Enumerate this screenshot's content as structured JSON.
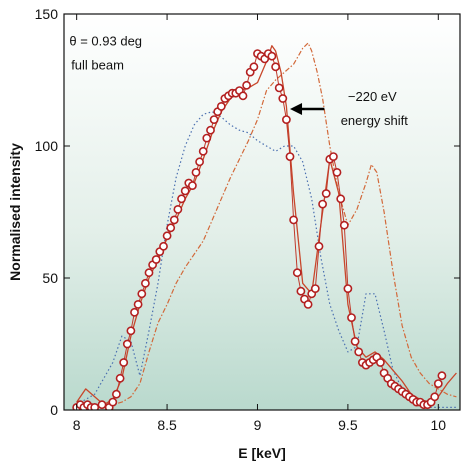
{
  "chart_data": {
    "type": "line",
    "xlabel": "E [keV]",
    "ylabel": "Normalised intensity",
    "xlim": [
      7.93,
      10.12
    ],
    "ylim": [
      0,
      150
    ],
    "x_ticks": [
      8,
      8.5,
      9,
      9.5,
      10
    ],
    "x_tick_labels": [
      "8",
      "8.5",
      "9",
      "9.5",
      "10"
    ],
    "y_ticks": [
      0,
      50,
      100,
      150
    ],
    "y_tick_labels": [
      "0",
      "50",
      "100",
      "150"
    ],
    "background": "white-to-green gradient (white at top, pale green at bottom)",
    "annotations": [
      {
        "text": "θ = 0.93 deg",
        "x": 7.96,
        "y": 138
      },
      {
        "text": "full beam",
        "x": 7.97,
        "y": 129
      },
      {
        "text": "−220 eV",
        "x": 9.5,
        "y": 117
      },
      {
        "text": "energy shift",
        "x": 9.46,
        "y": 108
      }
    ],
    "arrow": {
      "from": [
        9.37,
        114
      ],
      "to": [
        9.18,
        114
      ]
    },
    "colors": {
      "measured": "#c0392b",
      "marker_edge": "#b32020",
      "model_shifted": "#c8472b",
      "model_unshifted": "#d2693a",
      "blue_dotted": "#4a6fb0",
      "arrow": "#000000"
    },
    "series": [
      {
        "style": "markers",
        "x": [
          8.0,
          8.02,
          8.04,
          8.06,
          8.08,
          8.1,
          8.14,
          8.18,
          8.2,
          8.22,
          8.24,
          8.26,
          8.28,
          8.3,
          8.32,
          8.34,
          8.36,
          8.38,
          8.4,
          8.42,
          8.44,
          8.46,
          8.48,
          8.5,
          8.52,
          8.54,
          8.56,
          8.58,
          8.6,
          8.62,
          8.64,
          8.66,
          8.68,
          8.7,
          8.72,
          8.74,
          8.76,
          8.78,
          8.8,
          8.82,
          8.84,
          8.86,
          8.88,
          8.9,
          8.92,
          8.94,
          8.96,
          8.98,
          9.0,
          9.02,
          9.04,
          9.06,
          9.08,
          9.1,
          9.12,
          9.14,
          9.16,
          9.18,
          9.2,
          9.22,
          9.24,
          9.26,
          9.28,
          9.3,
          9.32,
          9.34,
          9.36,
          9.38,
          9.4,
          9.42,
          9.44,
          9.46,
          9.48,
          9.5,
          9.52,
          9.54,
          9.56,
          9.58,
          9.6,
          9.62,
          9.64,
          9.66,
          9.68,
          9.7,
          9.72,
          9.74,
          9.76,
          9.78,
          9.8,
          9.82,
          9.84,
          9.86,
          9.88,
          9.9,
          9.92,
          9.94,
          9.96,
          9.98,
          10.0,
          10.02
        ],
        "values": [
          1,
          2,
          1,
          2,
          1,
          1,
          2,
          1,
          3,
          6,
          12,
          18,
          25,
          30,
          37,
          40,
          44,
          48,
          52,
          55,
          57,
          60,
          62,
          66,
          69,
          72,
          76,
          80,
          83,
          86,
          85,
          90,
          94,
          98,
          103,
          106,
          110,
          113,
          115,
          118,
          119,
          120,
          120,
          121,
          119,
          123,
          128,
          130,
          135,
          134,
          133,
          135,
          134,
          130,
          122,
          118,
          110,
          96,
          72,
          52,
          45,
          42,
          40,
          44,
          46,
          62,
          78,
          82,
          95,
          96,
          90,
          80,
          70,
          46,
          35,
          26,
          22,
          18,
          17,
          18,
          19,
          20,
          18,
          14,
          12,
          10,
          9,
          8,
          7,
          6,
          5,
          4,
          3,
          3,
          2,
          2,
          3,
          5,
          10,
          13
        ]
      },
      {
        "style": "solid",
        "x": [
          8.0,
          8.05,
          8.1,
          8.15,
          8.2,
          8.25,
          8.3,
          8.35,
          8.4,
          8.45,
          8.5,
          8.55,
          8.6,
          8.65,
          8.7,
          8.75,
          8.8,
          8.85,
          8.9,
          8.95,
          9.0,
          9.05,
          9.08,
          9.1,
          9.13,
          9.16,
          9.2,
          9.25,
          9.3,
          9.35,
          9.4,
          9.45,
          9.5,
          9.55,
          9.6,
          9.65,
          9.7,
          9.75,
          9.8,
          9.85,
          9.9,
          9.95,
          10.0,
          10.05,
          10.1
        ],
        "values": [
          3,
          8,
          5,
          2,
          4,
          12,
          28,
          40,
          50,
          57,
          65,
          72,
          80,
          86,
          95,
          105,
          113,
          118,
          121,
          122,
          124,
          132,
          138,
          136,
          128,
          115,
          82,
          48,
          44,
          70,
          95,
          82,
          40,
          24,
          20,
          22,
          19,
          15,
          11,
          6,
          4,
          3,
          5,
          10,
          14
        ]
      },
      {
        "style": "dash-dot",
        "x": [
          8.0,
          8.05,
          8.1,
          8.15,
          8.2,
          8.25,
          8.3,
          8.35,
          8.4,
          8.45,
          8.5,
          8.55,
          8.6,
          8.65,
          8.7,
          8.75,
          8.8,
          8.85,
          8.9,
          8.95,
          9.0,
          9.05,
          9.1,
          9.15,
          9.2,
          9.25,
          9.28,
          9.3,
          9.33,
          9.36,
          9.4,
          9.45,
          9.5,
          9.55,
          9.6,
          9.63,
          9.66,
          9.7,
          9.75,
          9.8,
          9.85,
          9.9,
          9.95,
          10.0,
          10.05,
          10.1
        ],
        "values": [
          1,
          1,
          1,
          1,
          2,
          3,
          5,
          10,
          22,
          33,
          40,
          48,
          54,
          59,
          64,
          72,
          80,
          88,
          95,
          102,
          110,
          121,
          125,
          128,
          131,
          137,
          139,
          136,
          128,
          118,
          100,
          82,
          70,
          76,
          86,
          93,
          90,
          75,
          52,
          32,
          20,
          14,
          10,
          8,
          6,
          5
        ]
      },
      {
        "style": "dotted",
        "x": [
          8.0,
          8.05,
          8.1,
          8.15,
          8.2,
          8.25,
          8.3,
          8.35,
          8.4,
          8.45,
          8.5,
          8.55,
          8.6,
          8.65,
          8.7,
          8.75,
          8.8,
          8.85,
          8.9,
          8.95,
          9.0,
          9.05,
          9.1,
          9.15,
          9.2,
          9.25,
          9.3,
          9.35,
          9.4,
          9.45,
          9.5,
          9.55,
          9.6,
          9.65,
          9.7,
          9.75,
          9.8,
          9.85,
          9.9,
          9.95,
          10.0,
          10.05,
          10.1
        ],
        "values": [
          2,
          4,
          6,
          12,
          18,
          28,
          26,
          13,
          30,
          48,
          70,
          88,
          100,
          108,
          112,
          113,
          111,
          108,
          106,
          105,
          102,
          100,
          98,
          100,
          100,
          94,
          80,
          58,
          40,
          30,
          22,
          24,
          44,
          44,
          30,
          15,
          8,
          4,
          2,
          1,
          1,
          1,
          1
        ]
      }
    ]
  }
}
